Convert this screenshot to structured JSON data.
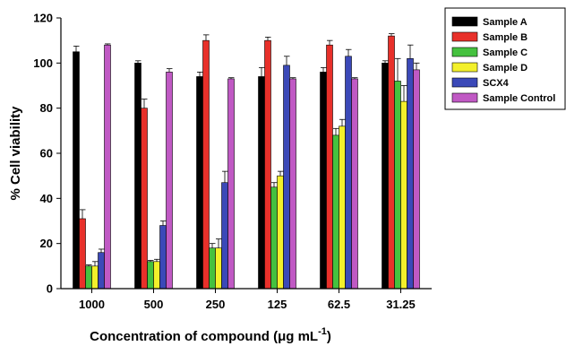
{
  "chart_data": {
    "type": "bar",
    "categories": [
      "1000",
      "500",
      "250",
      "125",
      "62.5",
      "31.25"
    ],
    "xlabel_main": "Concentration of compound (μg mL",
    "xlabel_sup": "-1",
    "xlabel_close": ")",
    "ylabel": "% Cell viability",
    "ylim": [
      0,
      120
    ],
    "yticks": [
      0,
      20,
      40,
      60,
      80,
      100,
      120
    ],
    "grid": false,
    "legend_position": "top-right",
    "error_bars": true,
    "series": [
      {
        "name": "Sample A",
        "color": "#000000",
        "values": [
          105,
          100,
          94,
          94,
          96,
          100
        ],
        "errors": [
          2.5,
          1,
          2,
          4,
          2,
          1
        ]
      },
      {
        "name": "Sample B",
        "color": "#e8302a",
        "values": [
          31,
          80,
          110,
          110,
          108,
          112
        ],
        "errors": [
          4,
          4,
          2.5,
          1.5,
          2,
          1
        ]
      },
      {
        "name": "Sample C",
        "color": "#45c13f",
        "values": [
          10,
          12,
          18,
          45,
          68,
          92
        ],
        "errors": [
          0.5,
          0.5,
          2,
          2,
          3,
          10
        ]
      },
      {
        "name": "Sample D",
        "color": "#f3f02b",
        "values": [
          10,
          12,
          18,
          50,
          72,
          83
        ],
        "errors": [
          2,
          1,
          4,
          2,
          3,
          7
        ]
      },
      {
        "name": "SCX4",
        "color": "#3b49b8",
        "values": [
          16,
          28,
          47,
          99,
          103,
          102
        ],
        "errors": [
          1.5,
          2,
          5,
          4,
          3,
          6
        ]
      },
      {
        "name": "Sample Control",
        "color": "#c059c4",
        "values": [
          108,
          96,
          93,
          93,
          93,
          97
        ],
        "errors": [
          0.5,
          1.5,
          0.5,
          0.5,
          0.5,
          3
        ]
      }
    ]
  }
}
